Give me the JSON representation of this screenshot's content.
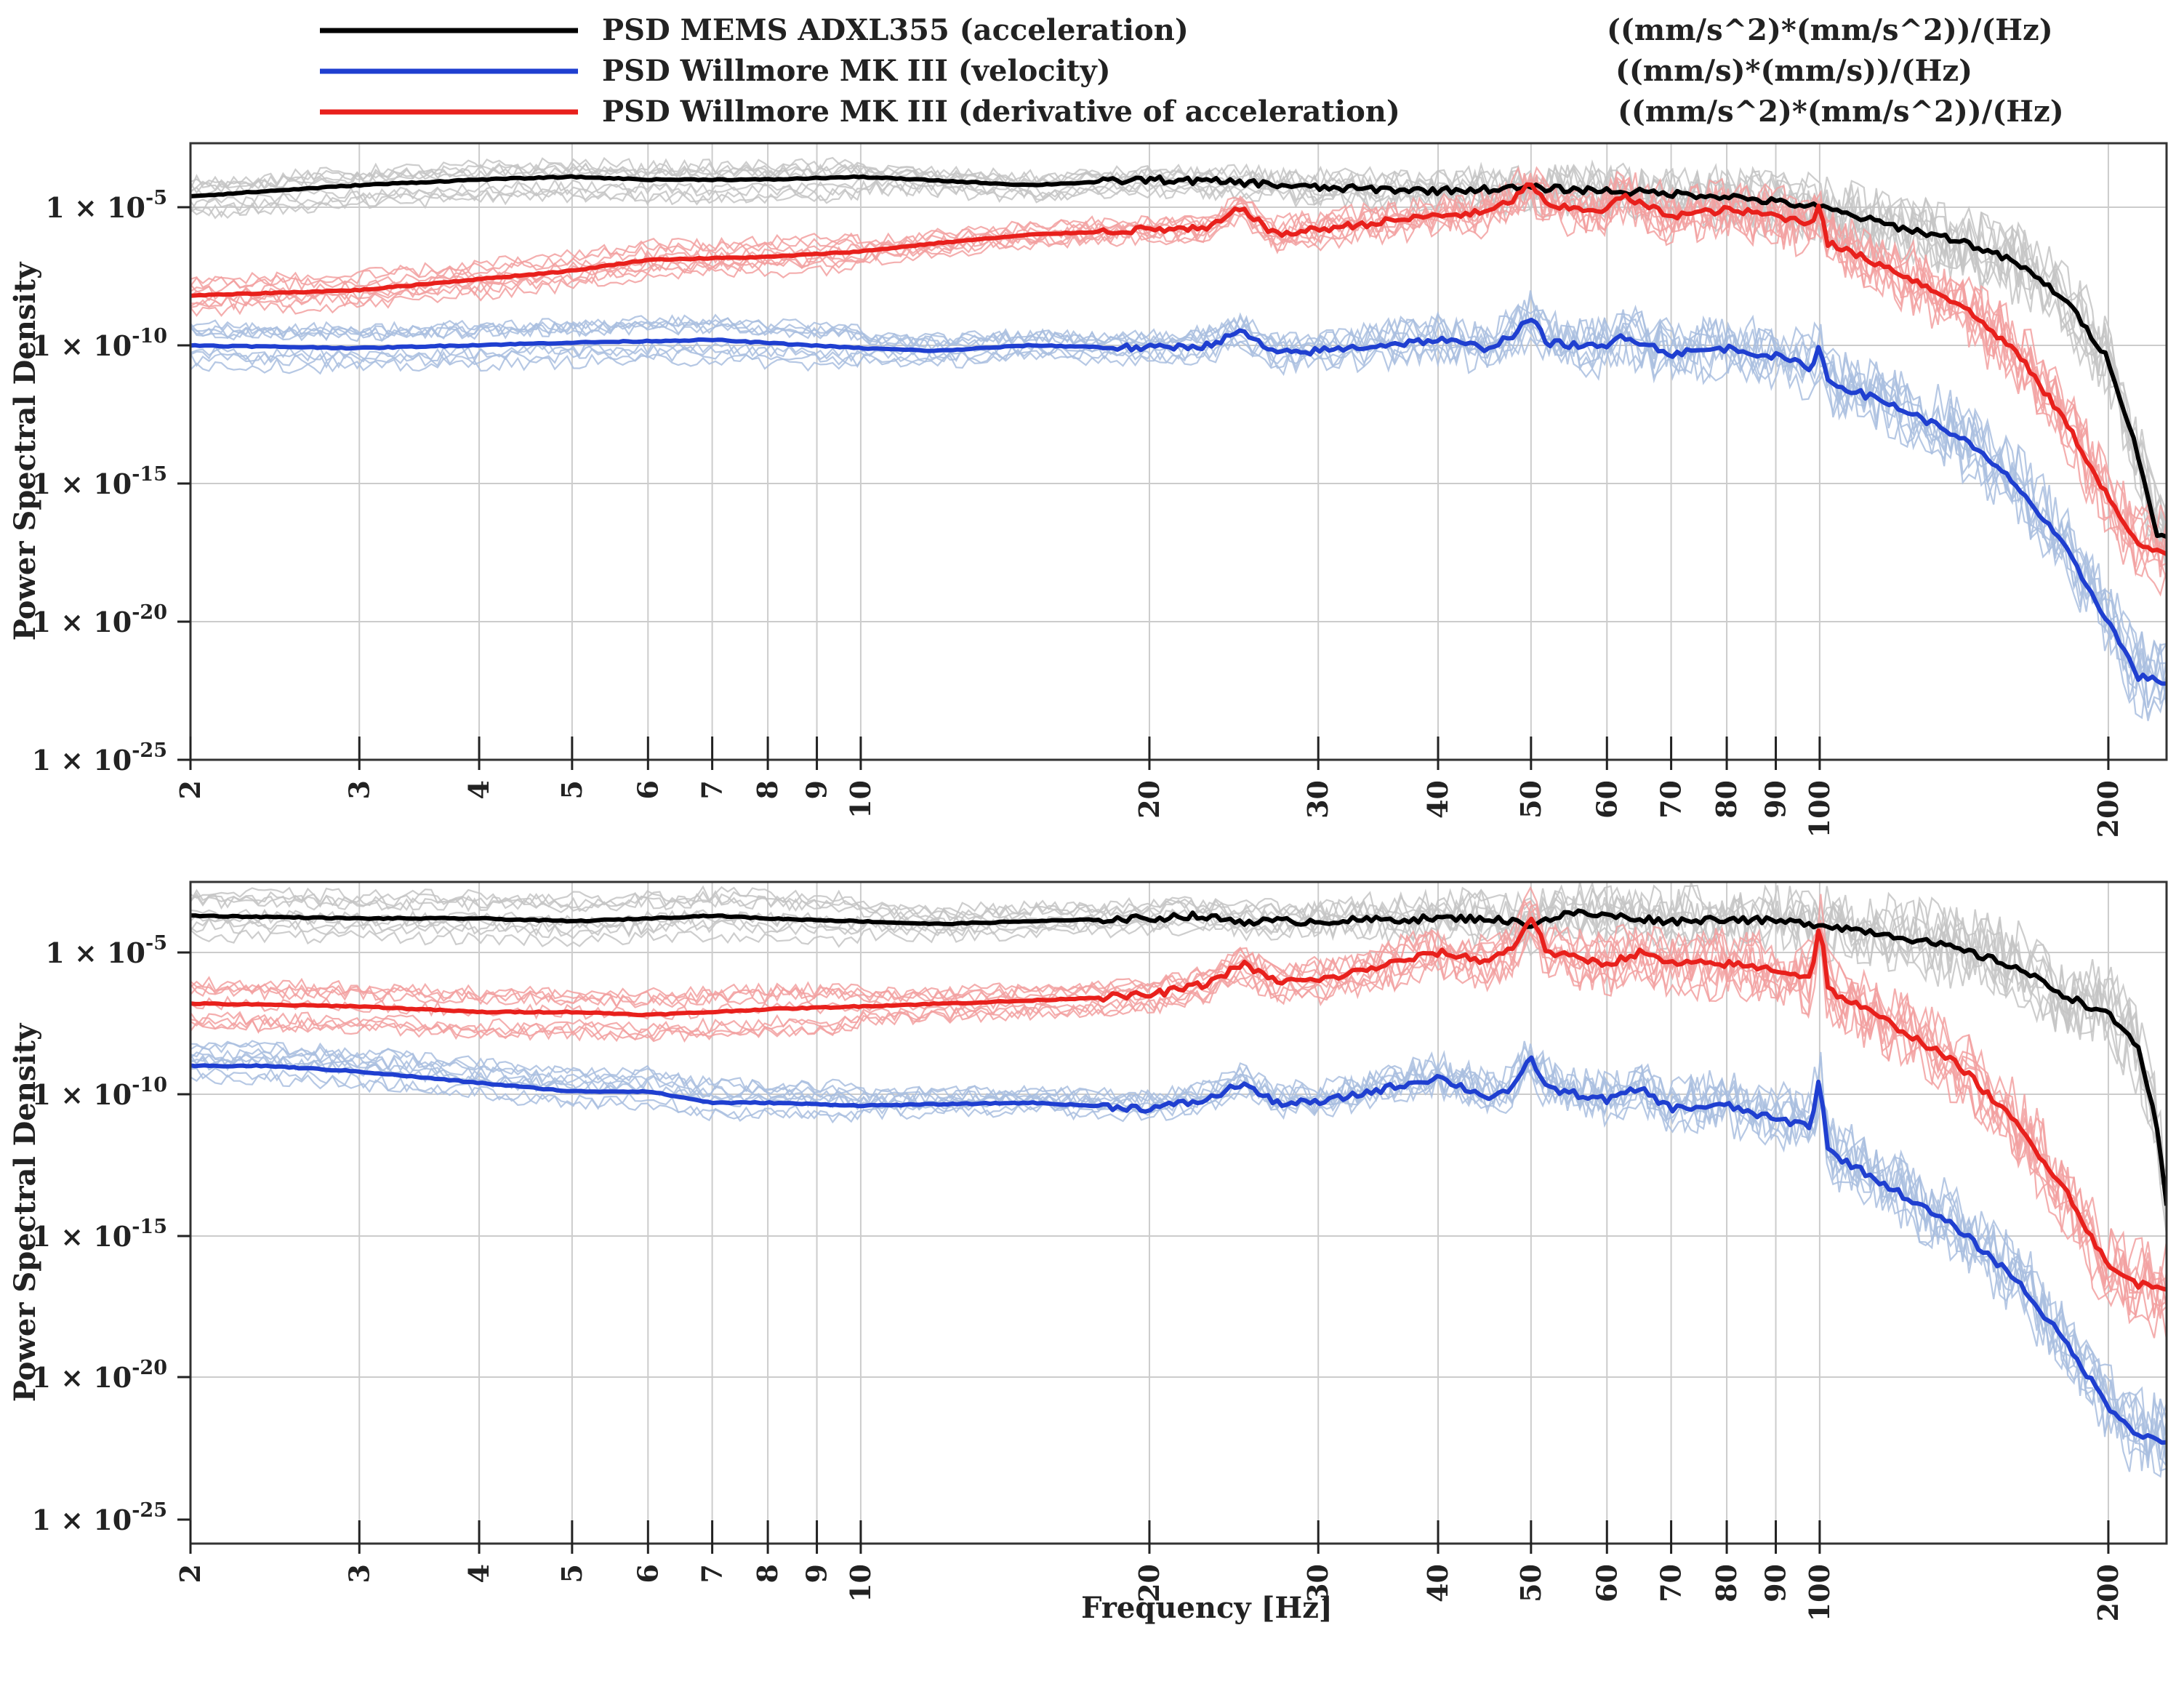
{
  "legend": [
    {
      "label": "PSD MEMS ADXL355 (acceleration)",
      "unit": "((mm/s^2)*(mm/s^2))/(Hz)",
      "color": "#000000"
    },
    {
      "label": "PSD Willmore MK III (velocity)",
      "unit": "((mm/s)*(mm/s))/(Hz)",
      "color": "#1f3fd0"
    },
    {
      "label": "PSD Willmore MK III (derivative of acceleration)",
      "unit": "((mm/s^2)*(mm/s^2))/(Hz)",
      "color": "#e8201c"
    }
  ],
  "colors": {
    "acceleration": "#000000",
    "velocity": "#1f3fd0",
    "derivative": "#e8201c",
    "acceleration_faint": "#c4c4c4",
    "velocity_faint": "#a9bedf",
    "derivative_faint": "#f2a0a0",
    "grid": "#cccccc"
  },
  "chart_data": [
    {
      "type": "line",
      "name": "top-panel",
      "xscale": "log",
      "yscale": "log",
      "xlim": [
        2,
        230
      ],
      "ylim": [
        1e-25,
        0.001
      ],
      "xlabel": "",
      "ylabel": "Power Spectral Density",
      "x_ticks": [
        2,
        3,
        4,
        5,
        6,
        7,
        8,
        9,
        10,
        20,
        30,
        40,
        50,
        60,
        70,
        80,
        90,
        100,
        200
      ],
      "y_ticks": [
        {
          "value": 1e-05,
          "label": "1 × 10",
          "exp": "-5"
        },
        {
          "value": 1e-10,
          "label": "1 × 10",
          "exp": "-10"
        },
        {
          "value": 1e-15,
          "label": "1 × 10",
          "exp": "-15"
        },
        {
          "value": 1e-20,
          "label": "1 × 10",
          "exp": "-20"
        },
        {
          "value": 1e-25,
          "label": "1 × 10",
          "exp": "-25"
        }
      ],
      "series": [
        {
          "name": "PSD MEMS ADXL355 (acceleration)",
          "key": "acceleration",
          "points": [
            [
              2,
              -4.6
            ],
            [
              3,
              -4.2
            ],
            [
              4,
              -4.0
            ],
            [
              5,
              -3.9
            ],
            [
              6,
              -4.0
            ],
            [
              8,
              -4.0
            ],
            [
              10,
              -3.9
            ],
            [
              15,
              -4.2
            ],
            [
              20,
              -4.0
            ],
            [
              25,
              -4.1
            ],
            [
              30,
              -4.3
            ],
            [
              40,
              -4.4
            ],
            [
              50,
              -4.3
            ],
            [
              60,
              -4.4
            ],
            [
              80,
              -4.6
            ],
            [
              100,
              -5.0
            ],
            [
              120,
              -5.7
            ],
            [
              140,
              -6.2
            ],
            [
              160,
              -7.0
            ],
            [
              180,
              -8.3
            ],
            [
              200,
              -10.5
            ],
            [
              215,
              -14.0
            ],
            [
              225,
              -16.9
            ],
            [
              230,
              -17.0
            ]
          ]
        },
        {
          "name": "PSD Willmore MK III (velocity)",
          "key": "velocity",
          "points": [
            [
              2,
              -10.0
            ],
            [
              3,
              -10.1
            ],
            [
              5,
              -9.9
            ],
            [
              7,
              -9.8
            ],
            [
              10,
              -10.1
            ],
            [
              12,
              -10.2
            ],
            [
              15,
              -10.0
            ],
            [
              20,
              -10.1
            ],
            [
              23,
              -10.0
            ],
            [
              25,
              -9.5
            ],
            [
              27,
              -10.3
            ],
            [
              30,
              -10.2
            ],
            [
              40,
              -9.8
            ],
            [
              45,
              -10.1
            ],
            [
              48,
              -9.6
            ],
            [
              50,
              -9.0
            ],
            [
              52,
              -9.9
            ],
            [
              60,
              -10.1
            ],
            [
              62,
              -9.6
            ],
            [
              70,
              -10.3
            ],
            [
              80,
              -10.1
            ],
            [
              90,
              -10.4
            ],
            [
              98,
              -10.8
            ],
            [
              100,
              -10.0
            ],
            [
              102,
              -11.3
            ],
            [
              120,
              -12.2
            ],
            [
              140,
              -13.3
            ],
            [
              160,
              -15.0
            ],
            [
              180,
              -17.3
            ],
            [
              200,
              -20.0
            ],
            [
              215,
              -22.0
            ],
            [
              230,
              -22.2
            ]
          ]
        },
        {
          "name": "PSD Willmore MK III (derivative of acceleration)",
          "key": "derivative",
          "points": [
            [
              2,
              -8.2
            ],
            [
              3,
              -8.0
            ],
            [
              4,
              -7.6
            ],
            [
              5,
              -7.3
            ],
            [
              6,
              -6.9
            ],
            [
              8,
              -6.8
            ],
            [
              10,
              -6.6
            ],
            [
              12,
              -6.3
            ],
            [
              15,
              -6.0
            ],
            [
              20,
              -5.8
            ],
            [
              23,
              -5.8
            ],
            [
              25,
              -5.0
            ],
            [
              27,
              -6.0
            ],
            [
              30,
              -5.8
            ],
            [
              40,
              -5.3
            ],
            [
              45,
              -5.2
            ],
            [
              48,
              -4.7
            ],
            [
              50,
              -4.1
            ],
            [
              52,
              -5.0
            ],
            [
              60,
              -5.1
            ],
            [
              62,
              -4.6
            ],
            [
              70,
              -5.3
            ],
            [
              80,
              -5.1
            ],
            [
              90,
              -5.3
            ],
            [
              98,
              -5.6
            ],
            [
              100,
              -4.8
            ],
            [
              102,
              -6.3
            ],
            [
              120,
              -7.3
            ],
            [
              140,
              -8.5
            ],
            [
              160,
              -10.2
            ],
            [
              180,
              -12.7
            ],
            [
              200,
              -15.5
            ],
            [
              215,
              -17.3
            ],
            [
              230,
              -17.5
            ]
          ]
        }
      ]
    },
    {
      "type": "line",
      "name": "bottom-panel",
      "xscale": "log",
      "yscale": "log",
      "xlim": [
        2,
        230
      ],
      "ylim": [
        1e-25,
        0.001
      ],
      "xlabel": "Frequency [Hz]",
      "ylabel": "Power Spectral Density",
      "x_ticks": [
        2,
        3,
        4,
        5,
        6,
        7,
        8,
        9,
        10,
        20,
        30,
        40,
        50,
        60,
        70,
        80,
        90,
        100,
        200
      ],
      "y_ticks": [
        {
          "value": 1e-05,
          "label": "1 × 10",
          "exp": "-5"
        },
        {
          "value": 1e-10,
          "label": "1 × 10",
          "exp": "-10"
        },
        {
          "value": 1e-15,
          "label": "1 × 10",
          "exp": "-15"
        },
        {
          "value": 1e-20,
          "label": "1 × 10",
          "exp": "-20"
        },
        {
          "value": 1e-25,
          "label": "1 × 10",
          "exp": "-25"
        }
      ],
      "series": [
        {
          "name": "PSD MEMS ADXL355 (acceleration)",
          "key": "acceleration",
          "points": [
            [
              2,
              -3.7
            ],
            [
              3,
              -3.8
            ],
            [
              4,
              -3.8
            ],
            [
              5,
              -3.9
            ],
            [
              6,
              -3.8
            ],
            [
              7,
              -3.7
            ],
            [
              8,
              -3.8
            ],
            [
              10,
              -3.9
            ],
            [
              12,
              -4.0
            ],
            [
              15,
              -3.9
            ],
            [
              20,
              -3.8
            ],
            [
              22,
              -3.7
            ],
            [
              25,
              -3.9
            ],
            [
              30,
              -3.9
            ],
            [
              40,
              -3.8
            ],
            [
              45,
              -3.8
            ],
            [
              50,
              -4.0
            ],
            [
              55,
              -3.6
            ],
            [
              60,
              -3.7
            ],
            [
              70,
              -3.9
            ],
            [
              80,
              -3.8
            ],
            [
              100,
              -4.0
            ],
            [
              120,
              -4.4
            ],
            [
              140,
              -4.9
            ],
            [
              160,
              -5.5
            ],
            [
              180,
              -6.5
            ],
            [
              200,
              -7.2
            ],
            [
              215,
              -8.3
            ],
            [
              225,
              -11.3
            ],
            [
              230,
              -14.0
            ]
          ]
        },
        {
          "name": "PSD Willmore MK III (velocity)",
          "key": "velocity",
          "points": [
            [
              2,
              -9.0
            ],
            [
              2.4,
              -9.0
            ],
            [
              3,
              -9.2
            ],
            [
              4,
              -9.6
            ],
            [
              5,
              -9.9
            ],
            [
              6,
              -9.9
            ],
            [
              7,
              -10.3
            ],
            [
              8,
              -10.3
            ],
            [
              10,
              -10.4
            ],
            [
              15,
              -10.3
            ],
            [
              20,
              -10.5
            ],
            [
              23,
              -10.2
            ],
            [
              25,
              -9.6
            ],
            [
              27,
              -10.3
            ],
            [
              30,
              -10.3
            ],
            [
              40,
              -9.4
            ],
            [
              45,
              -10.1
            ],
            [
              48,
              -9.8
            ],
            [
              50,
              -8.7
            ],
            [
              52,
              -9.8
            ],
            [
              60,
              -10.2
            ],
            [
              65,
              -9.8
            ],
            [
              70,
              -10.5
            ],
            [
              80,
              -10.4
            ],
            [
              90,
              -10.9
            ],
            [
              98,
              -11.1
            ],
            [
              100,
              -9.3
            ],
            [
              102,
              -12.0
            ],
            [
              120,
              -13.4
            ],
            [
              140,
              -14.8
            ],
            [
              160,
              -16.5
            ],
            [
              180,
              -18.7
            ],
            [
              200,
              -21.0
            ],
            [
              215,
              -22.0
            ],
            [
              230,
              -22.3
            ]
          ]
        },
        {
          "name": "PSD Willmore MK III (derivative of acceleration)",
          "key": "derivative",
          "points": [
            [
              2,
              -6.8
            ],
            [
              3,
              -6.9
            ],
            [
              4,
              -7.1
            ],
            [
              5,
              -7.1
            ],
            [
              6,
              -7.2
            ],
            [
              7,
              -7.1
            ],
            [
              8,
              -7.0
            ],
            [
              10,
              -6.9
            ],
            [
              15,
              -6.7
            ],
            [
              20,
              -6.5
            ],
            [
              23,
              -6.1
            ],
            [
              25,
              -5.4
            ],
            [
              27,
              -6.0
            ],
            [
              30,
              -6.0
            ],
            [
              40,
              -5.0
            ],
            [
              45,
              -5.3
            ],
            [
              48,
              -4.8
            ],
            [
              50,
              -3.7
            ],
            [
              52,
              -5.0
            ],
            [
              60,
              -5.4
            ],
            [
              65,
              -5.0
            ],
            [
              70,
              -5.4
            ],
            [
              80,
              -5.4
            ],
            [
              90,
              -5.6
            ],
            [
              98,
              -5.9
            ],
            [
              100,
              -3.8
            ],
            [
              102,
              -6.3
            ],
            [
              120,
              -7.6
            ],
            [
              140,
              -9.0
            ],
            [
              160,
              -11.0
            ],
            [
              180,
              -13.3
            ],
            [
              200,
              -16.1
            ],
            [
              215,
              -16.7
            ],
            [
              230,
              -16.8
            ]
          ]
        }
      ]
    }
  ]
}
